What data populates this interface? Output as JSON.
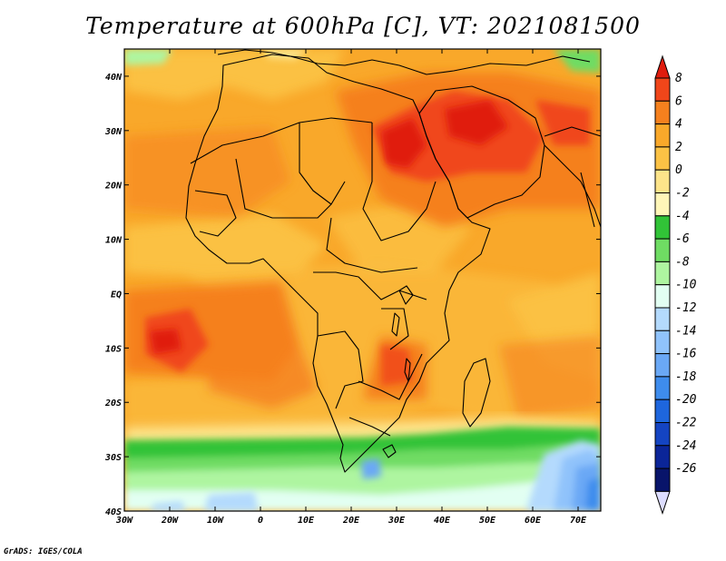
{
  "title": "Temperature at 600hPa [C], VT: 2021081500",
  "credit": "GrADS: IGES/COLA",
  "map": {
    "variable": "Temperature",
    "level": "600hPa",
    "units": "C",
    "valid_time": "2021081500",
    "lon_range": [
      -30,
      75
    ],
    "lat_range": [
      -40,
      45
    ],
    "lon_ticks": [
      "30W",
      "20W",
      "10W",
      "0",
      "10E",
      "20E",
      "30E",
      "40E",
      "50E",
      "60E",
      "70E"
    ],
    "lat_ticks": [
      "40N",
      "30N",
      "20N",
      "10N",
      "EQ",
      "10S",
      "20S",
      "30S",
      "40S"
    ]
  },
  "colorbar": {
    "labels": [
      "8",
      "6",
      "4",
      "2",
      "0",
      "-2",
      "-4",
      "-6",
      "-8",
      "-10",
      "-12",
      "-14",
      "-16",
      "-18",
      "-20",
      "-22",
      "-24",
      "-26"
    ],
    "colors": [
      "#e01c0e",
      "#f0461a",
      "#f5801e",
      "#f9a82a",
      "#fbc245",
      "#fde48a",
      "#fff6b8",
      "#31c337",
      "#6fdc63",
      "#aef5a0",
      "#e2fff2",
      "#b4dafd",
      "#90c3fb",
      "#6aa8f5",
      "#3e8ced",
      "#1e66dd",
      "#1444c2",
      "#0b2598",
      "#08146a",
      "#ddddff"
    ]
  }
}
